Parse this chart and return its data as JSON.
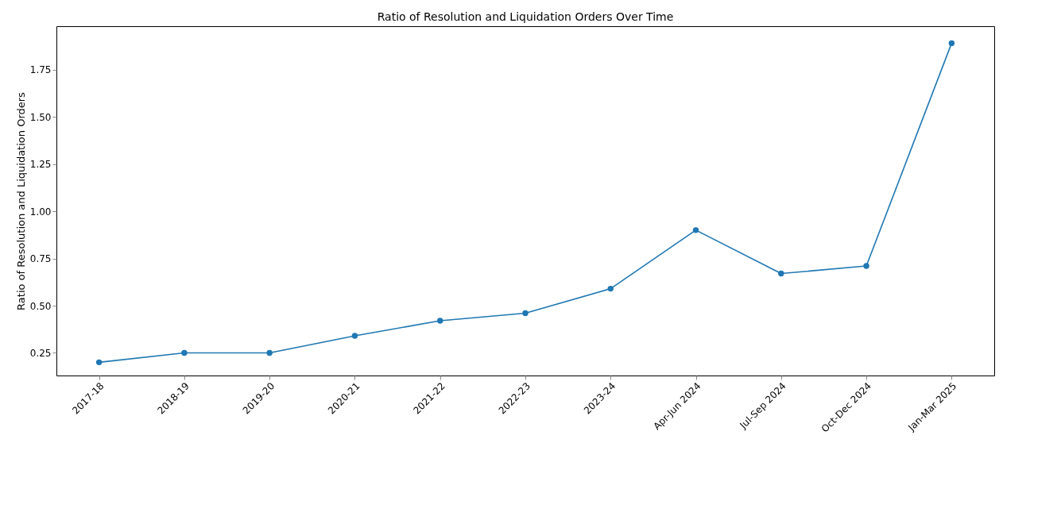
{
  "chart_data": {
    "type": "line",
    "title": "Ratio of Resolution and Liquidation Orders Over Time",
    "ylabel": "Ratio of Resolution and Liquidation Orders",
    "categories": [
      "2017-18",
      "2018-19",
      "2019-20",
      "2020-21",
      "2021-22",
      "2022-23",
      "2023-24",
      "Apr-Jun 2024",
      "Jul-Sep 2024",
      "Oct-Dec 2024",
      "Jan-Mar 2025"
    ],
    "series": [
      {
        "color": "#1f77b4",
        "values": [
          0.2,
          0.25,
          0.25,
          0.34,
          0.42,
          0.46,
          0.59,
          0.9,
          0.67,
          0.71,
          1.89
        ]
      }
    ],
    "ylim": [
      0.13,
      1.98
    ],
    "yticks": [
      0.25,
      {
        "value": 0.5,
        "label": "0.50"
      },
      0.75,
      {
        "value": 1.0,
        "label": "1.00"
      },
      1.25,
      {
        "value": 1.5,
        "label": "1.50"
      },
      1.75
    ],
    "marker": "circle",
    "line_style": "solid",
    "grid": false
  }
}
